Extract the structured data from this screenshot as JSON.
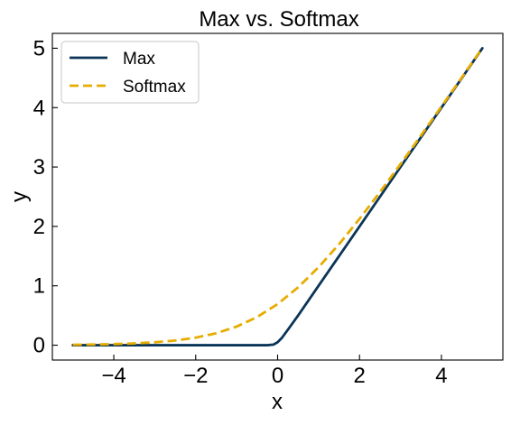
{
  "chart_data": {
    "type": "line",
    "title": "Max vs. Softmax",
    "xlabel": "x",
    "ylabel": "y",
    "xlim": [
      -5.5,
      5.5
    ],
    "ylim": [
      -0.25,
      5.25
    ],
    "xticks": [
      -4,
      -2,
      0,
      2,
      4
    ],
    "yticks": [
      0,
      1,
      2,
      3,
      4,
      5
    ],
    "x_tick_labels": [
      "−4",
      "−2",
      "0",
      "2",
      "4"
    ],
    "y_tick_labels": [
      "0",
      "1",
      "2",
      "3",
      "4",
      "5"
    ],
    "grid": false,
    "legend_position": "top-left",
    "series": [
      {
        "name": "Max",
        "color": "#0b3558",
        "linestyle": "solid",
        "x": [
          -5,
          -4,
          -3,
          -2,
          -1,
          -0.25,
          -0.1,
          0,
          0.1,
          0.25,
          0.5,
          1,
          1.5,
          2,
          2.5,
          3,
          3.5,
          4,
          4.5,
          5
        ],
        "y": [
          0,
          0,
          0,
          0,
          0,
          0,
          0.01,
          0.05,
          0.12,
          0.26,
          0.5,
          1,
          1.5,
          2,
          2.5,
          3,
          3.5,
          4,
          4.5,
          5
        ]
      },
      {
        "name": "Softmax",
        "color": "#e6ac00",
        "linestyle": "dashed",
        "x": [
          -5,
          -4.5,
          -4,
          -3.5,
          -3,
          -2.5,
          -2,
          -1.5,
          -1,
          -0.5,
          0,
          0.5,
          1,
          1.5,
          2,
          2.5,
          3,
          3.5,
          4,
          4.5,
          5
        ],
        "y": [
          0.007,
          0.011,
          0.018,
          0.03,
          0.049,
          0.079,
          0.127,
          0.201,
          0.313,
          0.474,
          0.693,
          0.974,
          1.313,
          1.701,
          2.127,
          2.579,
          3.049,
          3.53,
          4.018,
          4.511,
          5.007
        ]
      }
    ]
  }
}
